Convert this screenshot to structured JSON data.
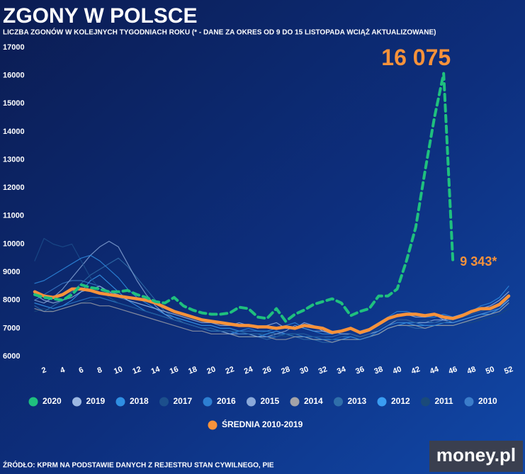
{
  "chart_data": {
    "type": "line",
    "title": "ZGONY W POLSCE",
    "subtitle": "LICZBA ZGONÓW W KOLEJNYCH TYGODNIACH ROKU (* - DANE ZA OKRES OD 9 DO 15 LISTOPADA WCIĄŻ AKTUALIZOWANE)",
    "source": "ŹRÓDŁO: KPRM NA PODSTAWIE DANYCH Z REJESTRU STAN CYWILNEGO, PIE",
    "logo": "money.pl",
    "x": [
      1,
      2,
      3,
      4,
      5,
      6,
      7,
      8,
      9,
      10,
      11,
      12,
      13,
      14,
      15,
      16,
      17,
      18,
      19,
      20,
      21,
      22,
      23,
      24,
      25,
      26,
      27,
      28,
      29,
      30,
      31,
      32,
      33,
      34,
      35,
      36,
      37,
      38,
      39,
      40,
      41,
      42,
      43,
      44,
      45,
      46,
      47,
      48,
      49,
      50,
      51,
      52
    ],
    "xlim": [
      1,
      52
    ],
    "xticks": [
      2,
      4,
      6,
      8,
      10,
      12,
      14,
      16,
      18,
      20,
      22,
      24,
      26,
      28,
      30,
      32,
      34,
      36,
      38,
      40,
      42,
      44,
      46,
      48,
      50,
      52
    ],
    "ylim": [
      6000,
      17000
    ],
    "yticks": [
      6000,
      7000,
      8000,
      9000,
      10000,
      11000,
      12000,
      13000,
      14000,
      15000,
      16000,
      17000
    ],
    "series": [
      {
        "name": "2020",
        "color": "#1fc07e",
        "values": [
          8200,
          8100,
          8050,
          8000,
          8200,
          8550,
          8450,
          8400,
          8300,
          8300,
          8350,
          8200,
          8100,
          7950,
          7900,
          8100,
          7800,
          7650,
          7550,
          7500,
          7500,
          7550,
          7750,
          7700,
          7400,
          7350,
          7700,
          7250,
          7500,
          7650,
          7850,
          7950,
          8050,
          7900,
          7450,
          7600,
          7700,
          8150,
          8150,
          8400,
          9400,
          10600,
          12600,
          14500,
          16075,
          9343,
          null,
          null,
          null,
          null,
          null,
          null
        ],
        "value_labels": [
          null,
          null,
          null,
          null,
          null,
          null,
          null,
          null,
          null,
          null,
          null,
          null,
          null,
          null,
          null,
          null,
          null,
          null,
          null,
          null,
          null,
          null,
          null,
          null,
          null,
          null,
          null,
          null,
          null,
          null,
          null,
          null,
          null,
          null,
          null,
          null,
          null,
          null,
          null,
          null,
          null,
          null,
          null,
          null,
          "16 075",
          "9 343*",
          null,
          null,
          null,
          null,
          null,
          null
        ]
      },
      {
        "name": "2019",
        "color": "#9cb8e2",
        "values": [
          8200,
          8000,
          7900,
          8000,
          8100,
          8300,
          8400,
          8500,
          8300,
          8200,
          8000,
          7900,
          7800,
          7700,
          7600,
          7500,
          7400,
          7300,
          7200,
          7200,
          7100,
          7100,
          7200,
          7100,
          7000,
          7100,
          7200,
          7000,
          7000,
          7200,
          7100,
          6900,
          6800,
          6900,
          7000,
          6800,
          6900,
          7100,
          7300,
          7500,
          7500,
          7400,
          7400,
          7500,
          7300,
          7400,
          7500,
          7600,
          7700,
          7800,
          8000,
          8300
        ]
      },
      {
        "name": "2018",
        "color": "#2f8fe3",
        "values": [
          8600,
          8700,
          8900,
          9100,
          9300,
          9500,
          9600,
          9400,
          9100,
          8800,
          8400,
          8100,
          7900,
          7700,
          7500,
          7400,
          7300,
          7200,
          7100,
          7100,
          7000,
          7000,
          6900,
          7000,
          6900,
          6900,
          7000,
          7100,
          7200,
          7000,
          6900,
          6800,
          6800,
          6900,
          7000,
          6900,
          7000,
          7200,
          7400,
          7600,
          7600,
          7500,
          7400,
          7400,
          7500,
          7400,
          7500,
          7600,
          7800,
          7900,
          8100,
          8500
        ]
      },
      {
        "name": "2017",
        "color": "#1c4f8c",
        "values": [
          9400,
          10200,
          10000,
          9900,
          10000,
          9400,
          8800,
          8400,
          8100,
          7900,
          7800,
          7700,
          7600,
          7500,
          7400,
          7300,
          7200,
          7100,
          7000,
          7000,
          6900,
          6900,
          6900,
          6800,
          6800,
          6900,
          6700,
          6800,
          6800,
          6800,
          6700,
          6700,
          6600,
          6700,
          6800,
          6700,
          6800,
          7000,
          7200,
          7300,
          7300,
          7200,
          7300,
          7200,
          7200,
          7300,
          7400,
          7500,
          7600,
          7700,
          7900,
          8200
        ]
      },
      {
        "name": "2016",
        "color": "#2d7fd2",
        "values": [
          7900,
          7800,
          7700,
          7800,
          7900,
          8000,
          8100,
          8100,
          8000,
          7900,
          7800,
          7700,
          7600,
          7500,
          7400,
          7300,
          7200,
          7100,
          7000,
          7000,
          6900,
          6900,
          6800,
          6800,
          6800,
          6700,
          6700,
          6800,
          6800,
          6700,
          6700,
          6600,
          6600,
          6700,
          6700,
          6600,
          6700,
          6900,
          7100,
          7200,
          7200,
          7200,
          7100,
          7100,
          7200,
          7200,
          7300,
          7400,
          7500,
          7600,
          7700,
          8100
        ]
      },
      {
        "name": "2015",
        "color": "#8aa9da",
        "values": [
          8000,
          7900,
          8100,
          8400,
          8800,
          9200,
          9600,
          9900,
          10100,
          9900,
          9300,
          8700,
          8200,
          7800,
          7500,
          7300,
          7200,
          7100,
          7000,
          7000,
          6900,
          6800,
          6800,
          6800,
          6700,
          6700,
          6800,
          6900,
          7100,
          7000,
          6900,
          6900,
          6900,
          6800,
          6800,
          6700,
          6800,
          6900,
          7100,
          7300,
          7300,
          7200,
          7200,
          7300,
          7300,
          7200,
          7300,
          7400,
          7500,
          7600,
          7700,
          8000
        ]
      },
      {
        "name": "2014",
        "color": "#a3a3a8",
        "values": [
          7700,
          7600,
          7600,
          7700,
          7800,
          7900,
          7900,
          7800,
          7800,
          7700,
          7600,
          7500,
          7400,
          7300,
          7200,
          7100,
          7000,
          6900,
          6900,
          6800,
          6800,
          6800,
          6700,
          6700,
          6700,
          6700,
          6600,
          6600,
          6700,
          6700,
          6600,
          6600,
          6500,
          6600,
          6600,
          6600,
          6700,
          6800,
          7000,
          7100,
          7100,
          7100,
          7000,
          7100,
          7100,
          7100,
          7200,
          7300,
          7400,
          7500,
          7600,
          7900
        ]
      },
      {
        "name": "2013",
        "color": "#2f6faa",
        "values": [
          7800,
          7600,
          7800,
          8000,
          8300,
          8600,
          8900,
          9100,
          9300,
          9500,
          9200,
          8800,
          8400,
          8000,
          7600,
          7400,
          7200,
          7100,
          7000,
          6900,
          6900,
          6800,
          6700,
          6700,
          6700,
          6600,
          6700,
          6800,
          6700,
          6600,
          6600,
          6500,
          6500,
          6600,
          6600,
          6600,
          6700,
          6800,
          7000,
          7100,
          7100,
          7000,
          7000,
          7100,
          7100,
          7100,
          7200,
          7300,
          7400,
          7500,
          7600,
          7900
        ]
      },
      {
        "name": "2012",
        "color": "#3a9df2",
        "values": [
          7900,
          7800,
          7700,
          7800,
          8000,
          8300,
          8700,
          8900,
          8600,
          8300,
          8000,
          7800,
          7600,
          7500,
          7400,
          7300,
          7200,
          7100,
          7000,
          6900,
          6900,
          6800,
          6900,
          6800,
          6700,
          6800,
          6900,
          6800,
          6700,
          6700,
          6600,
          6600,
          6600,
          6600,
          6700,
          6600,
          6700,
          6800,
          7000,
          7100,
          7200,
          7100,
          7100,
          7100,
          7200,
          7200,
          7300,
          7400,
          7500,
          7500,
          7700,
          8000
        ]
      },
      {
        "name": "2011",
        "color": "#1a4a7a",
        "values": [
          7600,
          7700,
          7600,
          7700,
          7800,
          7900,
          8000,
          8100,
          8000,
          7900,
          7800,
          7700,
          7600,
          7500,
          7400,
          7300,
          7200,
          7100,
          7000,
          7000,
          6900,
          6900,
          6900,
          6800,
          6800,
          6800,
          6800,
          6700,
          6800,
          6700,
          6700,
          6600,
          6600,
          6700,
          6700,
          6700,
          6700,
          6800,
          7000,
          7100,
          7100,
          7100,
          7100,
          7100,
          7100,
          7100,
          7200,
          7200,
          7300,
          7400,
          7500,
          7700
        ]
      },
      {
        "name": "2010",
        "color": "#3b7dca",
        "values": [
          8000,
          8200,
          8400,
          8600,
          8700,
          8700,
          8600,
          8500,
          8300,
          8100,
          8000,
          7900,
          7800,
          7700,
          7500,
          7400,
          7300,
          7200,
          7100,
          7100,
          7000,
          7000,
          6900,
          6900,
          6900,
          6900,
          6800,
          6800,
          6800,
          6800,
          6700,
          6700,
          6700,
          6800,
          6800,
          6700,
          6800,
          6900,
          7100,
          7200,
          7200,
          7200,
          7200,
          7200,
          7300,
          7300,
          7400,
          7500,
          7600,
          7700,
          7800,
          8100
        ]
      },
      {
        "name": "ŚREDNIA 2010-2019",
        "color": "#f7923a",
        "values": [
          8300,
          8150,
          8100,
          8200,
          8400,
          8400,
          8350,
          8250,
          8200,
          8150,
          8100,
          8050,
          8000,
          7900,
          7750,
          7600,
          7500,
          7400,
          7300,
          7250,
          7200,
          7150,
          7100,
          7100,
          7050,
          7050,
          7000,
          7050,
          7000,
          7100,
          7050,
          7000,
          6850,
          6900,
          7000,
          6850,
          6950,
          7150,
          7350,
          7450,
          7500,
          7500,
          7450,
          7500,
          7400,
          7350,
          7450,
          7600,
          7700,
          7700,
          7850,
          8150
        ]
      }
    ]
  }
}
